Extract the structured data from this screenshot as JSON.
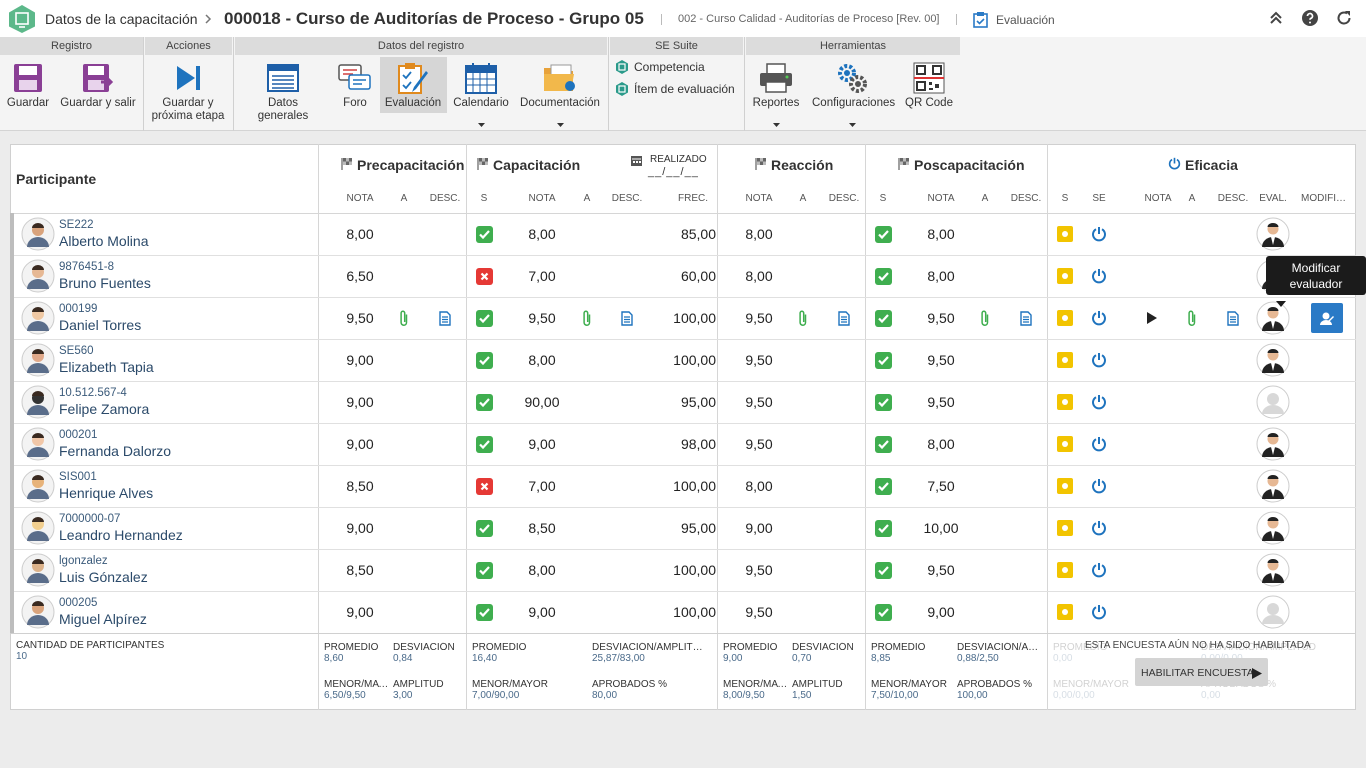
{
  "header": {
    "title": "Datos de la capacitación",
    "record": "000018 - Curso de Auditorías de Proceso - Grupo 05",
    "course": "002 - Curso Calidad - Auditorías de Proceso [Rev. 00]",
    "stage": "Evaluación"
  },
  "toolbar": {
    "groups": [
      {
        "title": "Registro",
        "items": [
          {
            "label": "Guardar"
          },
          {
            "label": "Guardar y salir"
          }
        ]
      },
      {
        "title": "Acciones",
        "items": [
          {
            "label": "Guardar y próxima etapa"
          }
        ]
      },
      {
        "title": "Datos del registro",
        "items": [
          {
            "label": "Datos generales"
          },
          {
            "label": "Foro"
          },
          {
            "label": "Evaluación",
            "active": true
          },
          {
            "label": "Calendario",
            "dropdown": true
          },
          {
            "label": "Documentación",
            "dropdown": true
          }
        ]
      },
      {
        "title": "SE Suite",
        "links": [
          "Competencia",
          "Ítem de evaluación"
        ]
      },
      {
        "title": "Herramientas",
        "items": [
          {
            "label": "Reportes",
            "dropdown": true
          },
          {
            "label": "Configuraciones",
            "dropdown": true
          },
          {
            "label": "QR Code"
          }
        ]
      }
    ]
  },
  "table": {
    "participant_header": "Participante",
    "sections": [
      {
        "title": "Precapacitación",
        "columns": [
          "NOTA",
          "A",
          "DESC."
        ]
      },
      {
        "title": "Capacitación",
        "columns": [
          "S",
          "NOTA",
          "A",
          "DESC.",
          "FREC."
        ],
        "done_label": "REALIZADO",
        "done_date": "__/__/__"
      },
      {
        "title": "Reacción",
        "columns": [
          "NOTA",
          "A",
          "DESC."
        ]
      },
      {
        "title": "Poscapacitación",
        "columns": [
          "S",
          "NOTA",
          "A",
          "DESC."
        ]
      },
      {
        "title": "Eficacia",
        "columns": [
          "S",
          "SE",
          "NOTA",
          "A",
          "DESC.",
          "EVAL.",
          "MODIFICAR"
        ]
      }
    ],
    "rows": [
      {
        "id": "SE222",
        "name": "Alberto Molina",
        "pre": "8,00",
        "cap_ok": true,
        "cap": "8,00",
        "freq": "85,00",
        "reac": "8,00",
        "pos_ok": true,
        "pos": "8,00",
        "evaluator": true,
        "attachments": false
      },
      {
        "id": "9876451-8",
        "name": "Bruno Fuentes",
        "pre": "6,50",
        "cap_ok": false,
        "cap": "7,00",
        "freq": "60,00",
        "reac": "8,00",
        "pos_ok": true,
        "pos": "8,00",
        "evaluator": true,
        "attachments": false
      },
      {
        "id": "000199",
        "name": "Daniel Torres",
        "pre": "9,50",
        "cap_ok": true,
        "cap": "9,50",
        "freq": "100,00",
        "reac": "9,50",
        "pos_ok": true,
        "pos": "9,50",
        "evaluator": true,
        "attachments": true
      },
      {
        "id": "SE560",
        "name": "Elizabeth Tapia",
        "pre": "9,00",
        "cap_ok": true,
        "cap": "8,00",
        "freq": "100,00",
        "reac": "9,50",
        "pos_ok": true,
        "pos": "9,50",
        "evaluator": true,
        "attachments": false
      },
      {
        "id": "10.512.567-4",
        "name": "Felipe Zamora",
        "pre": "9,00",
        "cap_ok": true,
        "cap": "90,00",
        "freq": "95,00",
        "reac": "9,50",
        "pos_ok": true,
        "pos": "9,50",
        "evaluator": false,
        "attachments": false
      },
      {
        "id": "000201",
        "name": "Fernanda Dalorzo",
        "pre": "9,00",
        "cap_ok": true,
        "cap": "9,00",
        "freq": "98,00",
        "reac": "9,50",
        "pos_ok": true,
        "pos": "8,00",
        "evaluator": true,
        "attachments": false
      },
      {
        "id": "SIS001",
        "name": "Henrique Alves",
        "pre": "8,50",
        "cap_ok": false,
        "cap": "7,00",
        "freq": "100,00",
        "reac": "8,00",
        "pos_ok": true,
        "pos": "7,50",
        "evaluator": true,
        "attachments": false
      },
      {
        "id": "7000000-07",
        "name": "Leandro Hernandez",
        "pre": "9,00",
        "cap_ok": true,
        "cap": "8,50",
        "freq": "95,00",
        "reac": "9,00",
        "pos_ok": true,
        "pos": "10,00",
        "evaluator": true,
        "attachments": false
      },
      {
        "id": "lgonzalez",
        "name": "Luis Gónzalez",
        "pre": "8,50",
        "cap_ok": true,
        "cap": "8,00",
        "freq": "100,00",
        "reac": "9,50",
        "pos_ok": true,
        "pos": "9,50",
        "evaluator": true,
        "attachments": false
      },
      {
        "id": "000205",
        "name": "Miguel Alpírez",
        "pre": "9,00",
        "cap_ok": true,
        "cap": "9,00",
        "freq": "100,00",
        "reac": "9,50",
        "pos_ok": true,
        "pos": "9,00",
        "evaluator": false,
        "attachments": false
      }
    ],
    "footer": {
      "count_label": "CANTIDAD DE PARTICIPANTES",
      "count": "10",
      "stats": [
        [
          {
            "label": "PROMEDIO",
            "value": "8,60"
          },
          {
            "label": "DESVIACIÓN",
            "value": "0,84"
          },
          {
            "label": "MENOR/MAYOR",
            "value": "6,50/9,50"
          },
          {
            "label": "AMPLITUD",
            "value": "3,00"
          }
        ],
        [
          {
            "label": "PROMEDIO",
            "value": "16,40"
          },
          {
            "label": "DESVIACIÓN/AMPLITUD",
            "value": "25,87/83,00"
          },
          {
            "label": "MENOR/MAYOR",
            "value": "7,00/90,00"
          },
          {
            "label": "APROBADOS %",
            "value": "80,00"
          }
        ],
        [
          {
            "label": "PROMEDIO",
            "value": "9,00"
          },
          {
            "label": "DESVIACIÓN",
            "value": "0,70"
          },
          {
            "label": "MENOR/MAYOR",
            "value": "8,00/9,50"
          },
          {
            "label": "AMPLITUD",
            "value": "1,50"
          }
        ],
        [
          {
            "label": "PROMEDIO",
            "value": "8,85"
          },
          {
            "label": "DESVIACIÓN/AMPLITUD",
            "value": "0,88/2,50"
          },
          {
            "label": "MENOR/MAYOR",
            "value": "7,50/10,00"
          },
          {
            "label": "APROBADOS %",
            "value": "100,00"
          }
        ],
        [
          {
            "label": "PROMEDIO",
            "value": "0,00"
          },
          {
            "label": "DESVIACIÓN/AMPLITUD",
            "value": "0,00/0,00"
          },
          {
            "label": "MENOR/MAYOR",
            "value": "0,00/0,00"
          },
          {
            "label": "APROBADOS %",
            "value": "0,00"
          }
        ]
      ],
      "survey_notice": "ESTA ENCUESTA AÚN NO HA SIDO HABILITADA",
      "survey_button": "HABILITAR ENCUESTA"
    }
  },
  "tooltip": "Modificar evaluador"
}
